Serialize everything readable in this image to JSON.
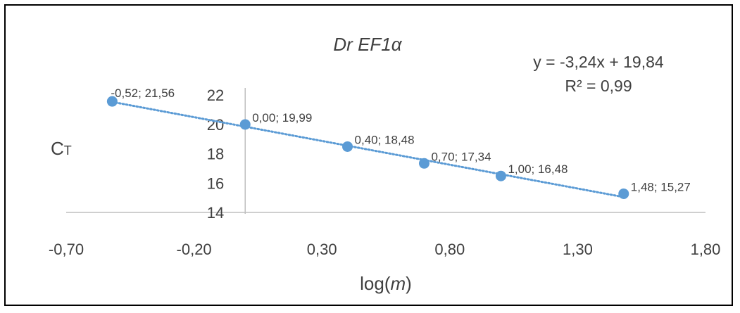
{
  "chart_data": {
    "type": "scatter",
    "title": "Dr EF1α",
    "xlabel_prefix": "log(",
    "xlabel_var": "m",
    "xlabel_suffix": ")",
    "ylabel_main": "C",
    "ylabel_sub": "T",
    "xlim": [
      -0.7,
      1.8
    ],
    "ylim": [
      14,
      22
    ],
    "x_ticks": [
      "-0,70",
      "-0,20",
      "0,30",
      "0,80",
      "1,30",
      "1,80"
    ],
    "y_ticks": [
      "14",
      "16",
      "18",
      "20",
      "22"
    ],
    "points": [
      {
        "x": -0.52,
        "y": 21.56,
        "label": "-0,52; 21,56"
      },
      {
        "x": 0.0,
        "y": 19.99,
        "label": "0,00; 19,99"
      },
      {
        "x": 0.4,
        "y": 18.48,
        "label": "0,40; 18,48"
      },
      {
        "x": 0.7,
        "y": 17.34,
        "label": "0,70; 17,34"
      },
      {
        "x": 1.0,
        "y": 16.48,
        "label": "1,00; 16,48"
      },
      {
        "x": 1.48,
        "y": 15.27,
        "label": "1,48; 15,27"
      }
    ],
    "trendline": {
      "type": "linear",
      "slope": -3.24,
      "intercept": 19.84,
      "style": "dotted"
    },
    "equation": "y = -3,24x + 19,84",
    "r_squared": "R² = 0,99",
    "grid": false,
    "colors": {
      "marker": "#5b9bd5",
      "trendline": "#5b9bd5",
      "axis": "#bfbfbf",
      "text": "#404040",
      "border": "#000000"
    }
  }
}
